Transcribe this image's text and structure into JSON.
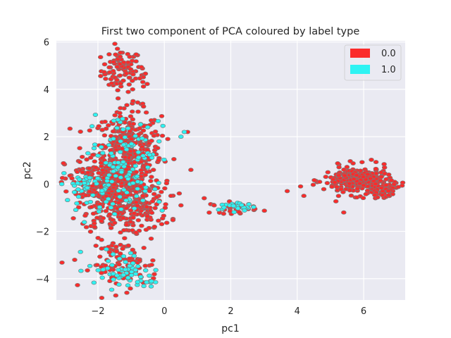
{
  "chart_data": {
    "type": "scatter",
    "title": "First two component of PCA coloured by label type",
    "xlabel": "pc1",
    "ylabel": "pc2",
    "xlim": [
      -3.25,
      7.25
    ],
    "ylim": [
      -4.9,
      6.05
    ],
    "xticks": [
      -2,
      0,
      2,
      4,
      6
    ],
    "yticks": [
      -4,
      -2,
      0,
      2,
      4,
      6
    ],
    "grid": true,
    "legend_position": "top-right",
    "series": [
      {
        "name": "0.0",
        "color": "#fb2b2b",
        "edge_color": "#7a7a7a",
        "clusters": [
          {
            "cx": -1.3,
            "cy": 4.8,
            "sx": 0.3,
            "sy": 0.45,
            "n": 90
          },
          {
            "cx": -0.6,
            "cy": 4.4,
            "sx": 0.08,
            "sy": 0.25,
            "n": 10
          },
          {
            "cx": -1.1,
            "cy": 1.3,
            "sx": 0.5,
            "sy": 0.9,
            "n": 420
          },
          {
            "cx": -1.5,
            "cy": -0.5,
            "sx": 0.5,
            "sy": 0.8,
            "n": 300
          },
          {
            "cx": -2.2,
            "cy": 0.0,
            "sx": 0.4,
            "sy": 0.6,
            "n": 80
          },
          {
            "cx": -0.6,
            "cy": -1.0,
            "sx": 0.4,
            "sy": 0.5,
            "n": 80
          },
          {
            "cx": -1.2,
            "cy": -3.4,
            "sx": 0.5,
            "sy": 0.5,
            "n": 100
          },
          {
            "cx": 2.1,
            "cy": -1.0,
            "sx": 0.35,
            "sy": 0.12,
            "n": 30
          },
          {
            "cx": 5.8,
            "cy": 0.15,
            "sx": 0.5,
            "sy": 0.3,
            "n": 260
          },
          {
            "cx": 6.6,
            "cy": -0.25,
            "sx": 0.2,
            "sy": 0.15,
            "n": 50
          }
        ],
        "points": [
          [
            0.7,
            2.2
          ],
          [
            0.8,
            0.6
          ],
          [
            1.2,
            -0.6
          ],
          [
            1.5,
            -0.9
          ],
          [
            1.8,
            -0.9
          ],
          [
            3.7,
            -0.3
          ],
          [
            4.1,
            -0.1
          ],
          [
            4.2,
            -0.5
          ],
          [
            5.4,
            -1.2
          ],
          [
            0.5,
            -0.9
          ],
          [
            0.2,
            -0.5
          ]
        ]
      },
      {
        "name": "1.0",
        "color": "#2ef3f3",
        "edge_color": "#7a7a7a",
        "clusters": [
          {
            "cx": -1.2,
            "cy": 1.5,
            "sx": 0.55,
            "sy": 0.8,
            "n": 70
          },
          {
            "cx": -2.5,
            "cy": 0.0,
            "sx": 0.25,
            "sy": 0.2,
            "n": 25
          },
          {
            "cx": -1.6,
            "cy": -0.5,
            "sx": 0.55,
            "sy": 0.6,
            "n": 60
          },
          {
            "cx": -1.3,
            "cy": -3.6,
            "sx": 0.5,
            "sy": 0.4,
            "n": 50
          },
          {
            "cx": -0.6,
            "cy": -4.1,
            "sx": 0.15,
            "sy": 0.12,
            "n": 14
          },
          {
            "cx": 2.2,
            "cy": -0.95,
            "sx": 0.28,
            "sy": 0.1,
            "n": 25
          }
        ],
        "points": [
          [
            -2.3,
            1.3
          ],
          [
            -2.0,
            1.2
          ],
          [
            0.5,
            2.0
          ],
          [
            0.6,
            2.2
          ],
          [
            -0.8,
            0.1
          ],
          [
            -0.5,
            2.4
          ]
        ]
      }
    ]
  }
}
